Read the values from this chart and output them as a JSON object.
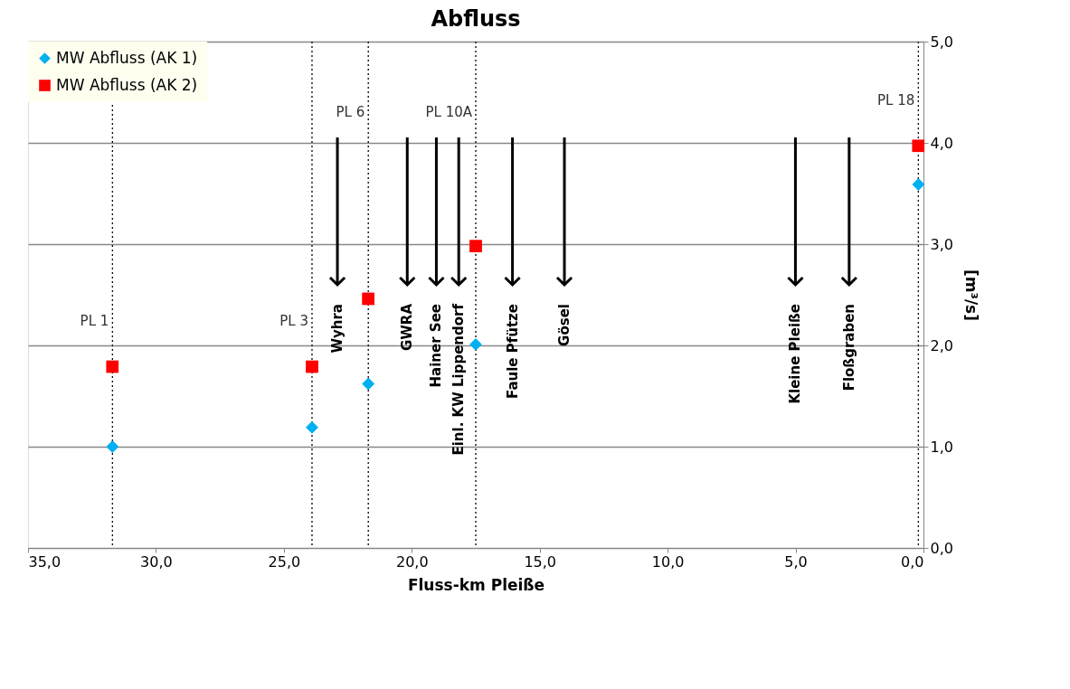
{
  "chart_data": {
    "type": "scatter",
    "title": "Abfluss",
    "xlabel": "Fluss-km Pleiße",
    "ylabel": "[m³/s]",
    "series": [
      {
        "name": "MW Abfluss (AK 1)",
        "color": "#00b0f0",
        "marker": "diamond",
        "x": [
          31.7,
          23.9,
          21.7,
          17.5,
          0.2
        ],
        "values": [
          1.0,
          1.19,
          1.62,
          2.01,
          3.59
        ]
      },
      {
        "name": "MW Abfluss (AK 2)",
        "color": "#ff0000",
        "marker": "square",
        "x": [
          31.7,
          23.9,
          21.7,
          17.5,
          0.2
        ],
        "values": [
          1.79,
          1.79,
          2.46,
          2.98,
          3.97
        ]
      }
    ],
    "xlim": [
      35,
      0
    ],
    "xticks": [
      {
        "value": 35,
        "label": "35,0"
      },
      {
        "value": 30,
        "label": "30,0"
      },
      {
        "value": 25,
        "label": "25,0"
      },
      {
        "value": 20,
        "label": "20,0"
      },
      {
        "value": 15,
        "label": "15,0"
      },
      {
        "value": 10,
        "label": "10,0"
      },
      {
        "value": 5,
        "label": "5,0"
      },
      {
        "value": 0,
        "label": "0,0"
      }
    ],
    "ylim": [
      0,
      5
    ],
    "yticks": [
      {
        "value": 0,
        "label": "0,0"
      },
      {
        "value": 1,
        "label": "1,0"
      },
      {
        "value": 2,
        "label": "2,0"
      },
      {
        "value": 3,
        "label": "3,0"
      },
      {
        "value": 4,
        "label": "4,0"
      },
      {
        "value": 5,
        "label": "5,0"
      }
    ],
    "grid": "y",
    "legend": "top left",
    "ref_lines": [
      {
        "axis": "x",
        "value": 31.7,
        "label": "PL 1",
        "color": "#000000",
        "line_style": "dotted"
      },
      {
        "axis": "x",
        "value": 23.9,
        "label": "PL 3",
        "color": "#000000",
        "line_style": "dotted"
      },
      {
        "axis": "x",
        "value": 21.7,
        "label": "PL 6",
        "color": "#000000",
        "line_style": "dotted"
      },
      {
        "axis": "x",
        "value": 17.5,
        "label": "PL 10A",
        "color": "#000000",
        "line_style": "dotted"
      },
      {
        "axis": "x",
        "value": 0.2,
        "label": "PL 18",
        "color": "#000000",
        "line_style": "dotted"
      }
    ],
    "annotations": [
      "Wyhra",
      "GWRA",
      "Hainer See",
      "Einl. KW Lippendorf",
      "Faule Pfütze",
      "Gösel",
      "Kleine Pleiße",
      "Floßgraben"
    ]
  }
}
